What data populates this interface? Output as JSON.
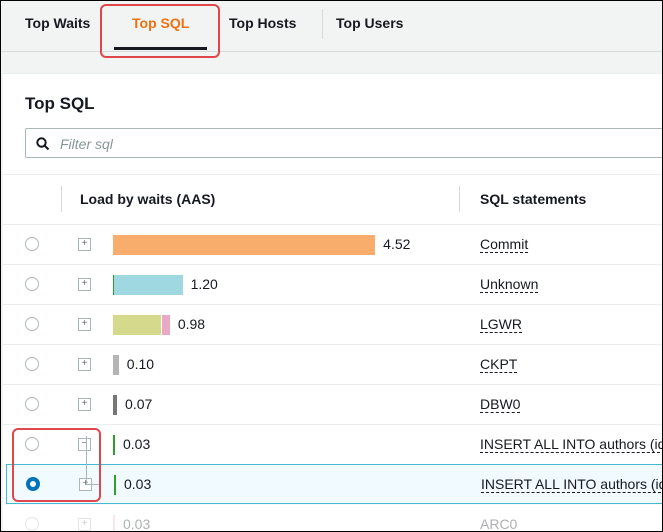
{
  "tabs": [
    "Top Waits",
    "Top SQL",
    "Top Hosts",
    "Top Users"
  ],
  "active_tab": 1,
  "panel": {
    "title": "Top SQL",
    "filter_placeholder": "Filter sql"
  },
  "table": {
    "headers": [
      "Load by waits (AAS)",
      "SQL statements"
    ],
    "selected_row": 6,
    "rows": [
      {
        "load": "4.52",
        "value": 4.52,
        "color": "#f8ad6d",
        "sql": "Commit",
        "expanded": false
      },
      {
        "load": "1.20",
        "value": 1.2,
        "color": "#9fd8e1",
        "sql": "Unknown",
        "expanded": false
      },
      {
        "load": "0.98",
        "value": 0.98,
        "color": "#d4d98b",
        "sql": "LGWR",
        "expanded": false
      },
      {
        "load": "0.10",
        "value": 0.1,
        "color": "#b5b5b5",
        "sql": "CKPT",
        "expanded": false
      },
      {
        "load": "0.07",
        "value": 0.07,
        "color": "#777777",
        "sql": "DBW0",
        "expanded": false
      },
      {
        "load": "0.03",
        "value": 0.03,
        "color": "#2ca02c",
        "sql": "INSERT ALL INTO authors (id",
        "expanded": true
      },
      {
        "load": "0.03",
        "value": 0.03,
        "color": "#2ca02c",
        "sql": "INSERT ALL INTO authors (id",
        "expanded": false
      },
      {
        "load": "0.03",
        "value": 0.03,
        "color": "#f0b8c8",
        "sql": "ARC0",
        "expanded": false
      }
    ]
  }
}
